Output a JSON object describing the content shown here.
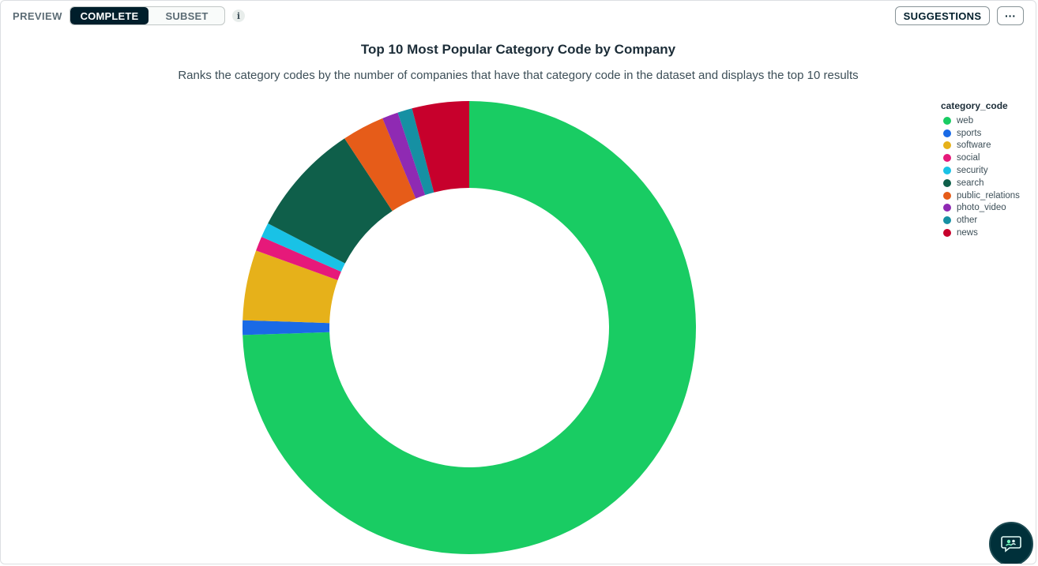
{
  "toolbar": {
    "preview_label": "PREVIEW",
    "toggle": {
      "complete_label": "COMPLETE",
      "subset_label": "SUBSET",
      "selected": "COMPLETE"
    },
    "info_icon": "info-icon",
    "info_glyph": "i",
    "suggestions_label": "SUGGESTIONS",
    "more_label": "···"
  },
  "chart_data": {
    "type": "pie",
    "variant": "donut",
    "title": "Top 10 Most Popular Category Code by Company",
    "subtitle": "Ranks the category codes by the number of companies that have that category code in the dataset and displays the top 10 results",
    "legend_title": "category_code",
    "legend_position": "top-right",
    "start_angle_deg": 0,
    "slices": [
      {
        "label": "web",
        "value": 71.5,
        "color": "#19cc63"
      },
      {
        "label": "sports",
        "value": 1.0,
        "color": "#1a6ae6"
      },
      {
        "label": "software",
        "value": 4.8,
        "color": "#e6b11a"
      },
      {
        "label": "social",
        "value": 1.0,
        "color": "#e6197a"
      },
      {
        "label": "security",
        "value": 1.0,
        "color": "#19c2e6"
      },
      {
        "label": "search",
        "value": 7.8,
        "color": "#0f5f4a"
      },
      {
        "label": "public_relations",
        "value": 2.9,
        "color": "#e65c19"
      },
      {
        "label": "photo_video",
        "value": 1.1,
        "color": "#8f2ab3"
      },
      {
        "label": "other",
        "value": 1.0,
        "color": "#1690a3"
      },
      {
        "label": "news",
        "value": 3.9,
        "color": "#c7002c"
      }
    ]
  },
  "chat_button": {
    "icon": "chat-assistant-icon"
  }
}
